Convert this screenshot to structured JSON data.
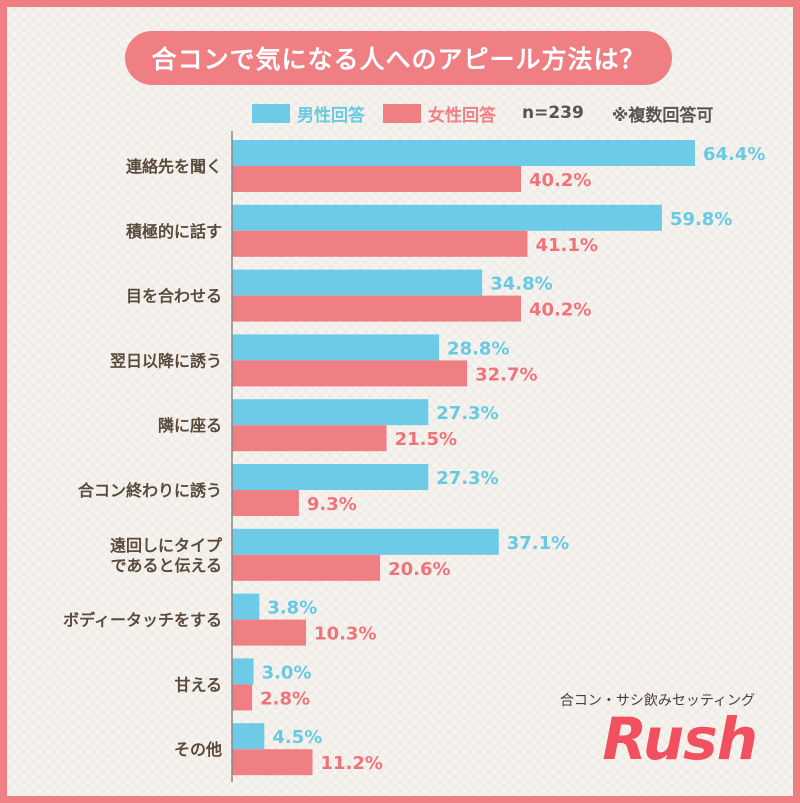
{
  "title": "合コンで気になる人へのアピール方法は？",
  "legend": {
    "male_label": "男性回答",
    "female_label": "女性回答",
    "sample": "n=239",
    "note": "※複数回答可"
  },
  "colors": {
    "male": "#6dcbe8",
    "female": "#f07f84",
    "male_text": "#68c9e3",
    "female_text": "#f0737a",
    "category_text": "#5a4a3a",
    "frame": "#f07f84"
  },
  "brand": {
    "subtitle": "合コン・サシ飲みセッティング",
    "logo": "Rush"
  },
  "chart_data": {
    "type": "bar",
    "orientation": "horizontal",
    "categories": [
      [
        "連絡先を聞く"
      ],
      [
        "積極的に話す"
      ],
      [
        "目を合わせる"
      ],
      [
        "翌日以降に誘う"
      ],
      [
        "隣に座る"
      ],
      [
        "合コン終わりに誘う"
      ],
      [
        "遠回しにタイプ",
        "であると伝える"
      ],
      [
        "ボディータッチをする"
      ],
      [
        "甘える"
      ],
      [
        "その他"
      ]
    ],
    "series": [
      {
        "name": "男性回答",
        "values": [
          64.4,
          59.8,
          34.8,
          28.8,
          27.3,
          27.3,
          37.1,
          3.8,
          3.0,
          4.5
        ],
        "labels": [
          "64.4%",
          "59.8%",
          "34.8%",
          "28.8%",
          "27.3%",
          "27.3%",
          "37.1%",
          "3.8%",
          "3.0%",
          "4.5%"
        ]
      },
      {
        "name": "女性回答",
        "values": [
          40.2,
          41.1,
          40.2,
          32.7,
          21.5,
          9.3,
          20.6,
          10.3,
          2.8,
          11.2
        ],
        "labels": [
          "40.2%",
          "41.1%",
          "40.2%",
          "32.7%",
          "21.5%",
          "9.3%",
          "20.6%",
          "10.3%",
          "2.8%",
          "11.2%"
        ]
      }
    ],
    "xlim": [
      0,
      70
    ],
    "grid": false,
    "legend_position": "top"
  }
}
